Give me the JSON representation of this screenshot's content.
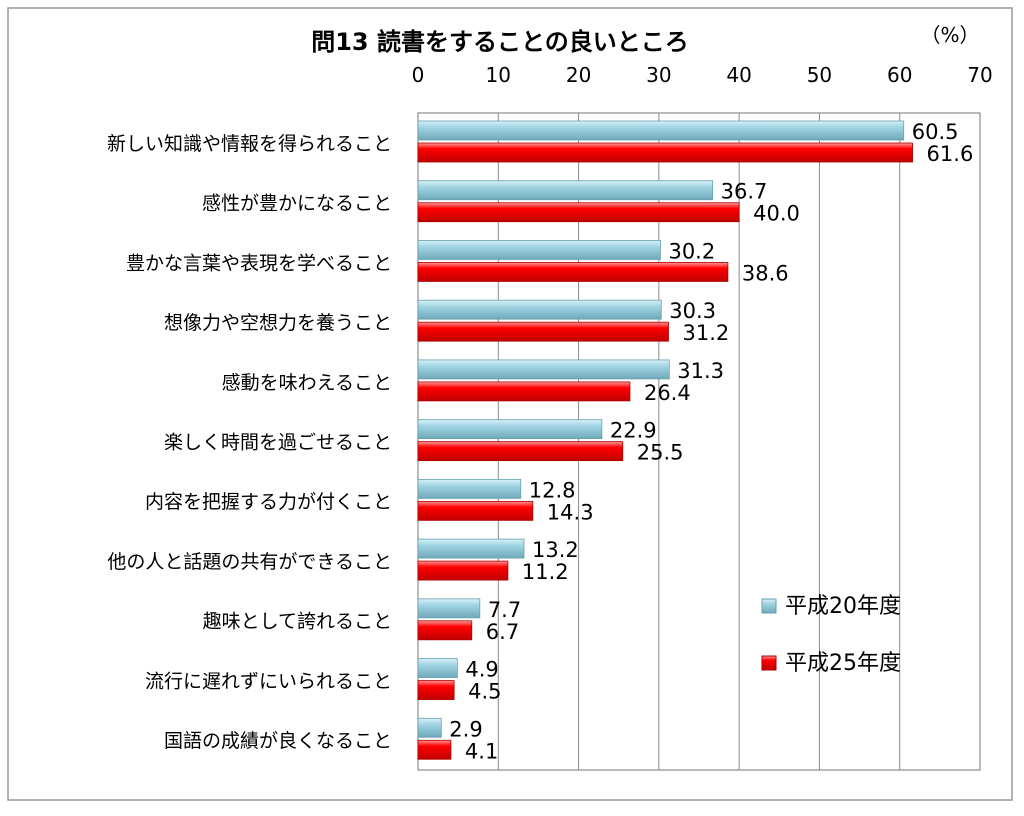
{
  "chart_data": {
    "type": "bar",
    "orientation": "horizontal",
    "title": "問13 読書をすることの良いところ",
    "unit_label": "（%）",
    "xlim": [
      0,
      70
    ],
    "ticks": [
      0,
      10,
      20,
      30,
      40,
      50,
      60,
      70
    ],
    "grid": true,
    "legend_position": "right",
    "categories": [
      "新しい知識や情報を得られること",
      "感性が豊かになること",
      "豊かな言葉や表現を学べること",
      "想像力や空想力を養うこと",
      "感動を味わえること",
      "楽しく時間を過ごせること",
      "内容を把握する力が付くこと",
      "他の人と話題の共有ができること",
      "趣味として誇れること",
      "流行に遅れずにいられること",
      "国語の成績が良くなること"
    ],
    "series": [
      {
        "name": "平成20年度",
        "color": "#8ec9d9",
        "values": [
          60.5,
          36.7,
          30.2,
          30.3,
          31.3,
          22.9,
          12.8,
          13.2,
          7.7,
          4.9,
          2.9
        ]
      },
      {
        "name": "平成25年度",
        "color": "#ff0000",
        "values": [
          61.6,
          40.0,
          38.6,
          31.2,
          26.4,
          25.5,
          14.3,
          11.2,
          6.7,
          4.5,
          4.1
        ]
      }
    ]
  }
}
